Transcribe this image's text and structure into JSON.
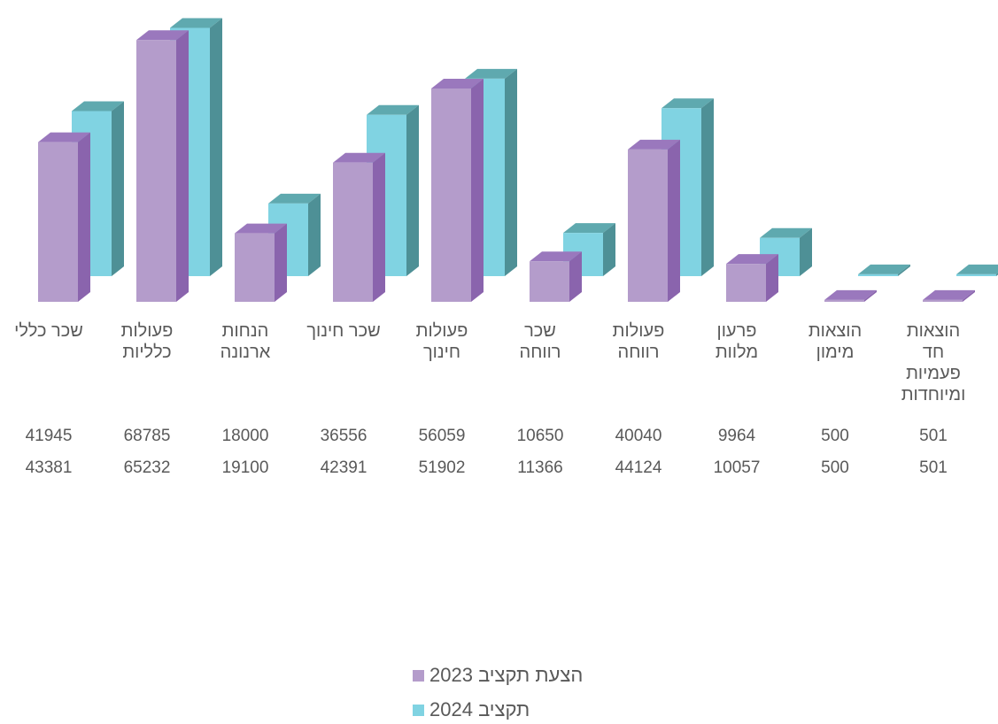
{
  "chart_data": {
    "type": "bar",
    "style": "3d-clustered-column",
    "categories": [
      "שכר כללי",
      "פעולות כלליות",
      "הנחות ארנונה",
      "שכר חינוך",
      "פעולות חינוך",
      "שכר רווחה",
      "פעולות רווחה",
      "פרעון מלוות",
      "הוצאות מימון",
      "הוצאות חד פעמיות ומיוחדות"
    ],
    "category_lines": [
      [
        "שכר כללי"
      ],
      [
        "פעולות",
        "כלליות"
      ],
      [
        "הנחות",
        "ארנונה"
      ],
      [
        "שכר חינוך"
      ],
      [
        "פעולות",
        "חינוך"
      ],
      [
        "שכר",
        "רווחה"
      ],
      [
        "פעולות",
        "רווחה"
      ],
      [
        "פרעון",
        "מלוות"
      ],
      [
        "הוצאות",
        "מימון"
      ],
      [
        "הוצאות",
        "חד",
        "פעמיות",
        "ומיוחדות"
      ]
    ],
    "series": [
      {
        "name": "הצעת תקציב 2023",
        "values": [
          41945,
          68785,
          18000,
          36556,
          56059,
          10650,
          40040,
          9964,
          500,
          501
        ]
      },
      {
        "name": "תקציב 2024",
        "values": [
          43381,
          65232,
          19100,
          42391,
          51902,
          11366,
          44124,
          10057,
          500,
          501
        ]
      }
    ],
    "colors": {
      "series1": "#b49ccb",
      "series1_side": "#8a64ad",
      "series1_top": "#9a78bd",
      "series2": "#80d3e2",
      "series2_side": "#4e9096",
      "series2_top": "#5fa9af"
    },
    "ylim": [
      0,
      70000
    ],
    "grid": false,
    "legend": "bottom",
    "data_table": true
  }
}
